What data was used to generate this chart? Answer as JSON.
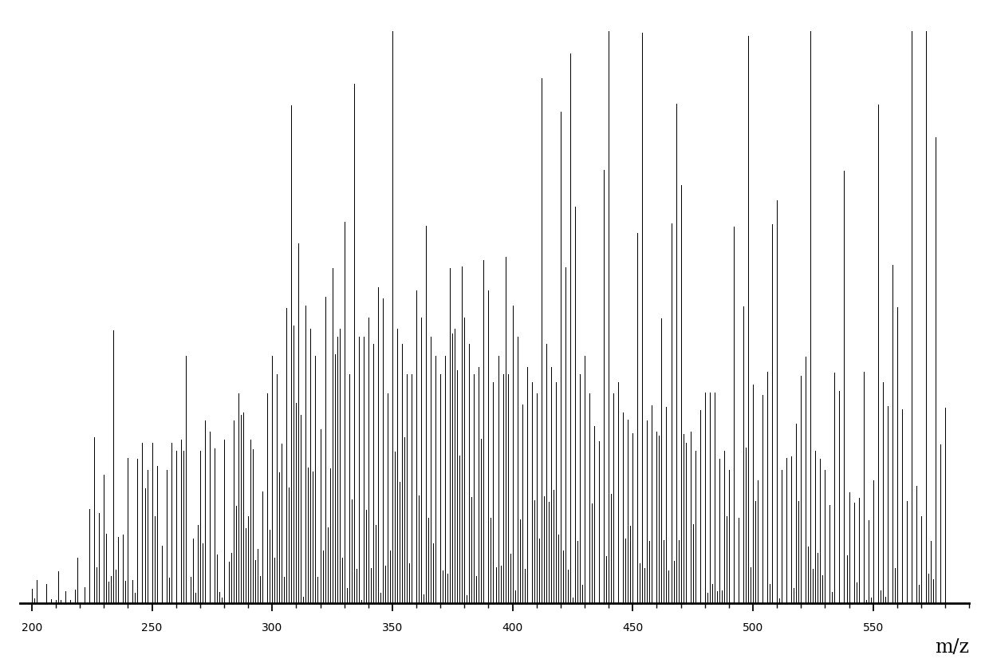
{
  "xmin": 195,
  "xmax": 590,
  "ymin": 0,
  "ymax": 1.0,
  "xlabel": "m/z",
  "xticks": [
    200,
    250,
    300,
    350,
    400,
    450,
    500,
    550
  ],
  "background_color": "#ffffff",
  "bar_color": "#000000",
  "figsize": [
    12.4,
    8.31
  ],
  "dpi": 100
}
